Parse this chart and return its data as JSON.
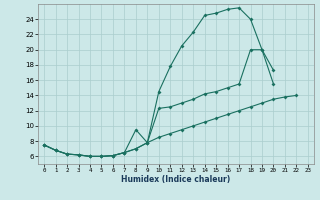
{
  "xlabel": "Humidex (Indice chaleur)",
  "xlim": [
    -0.5,
    23.5
  ],
  "ylim": [
    5.0,
    26.0
  ],
  "yticks": [
    6,
    8,
    10,
    12,
    14,
    16,
    18,
    20,
    22,
    24
  ],
  "xticks": [
    0,
    1,
    2,
    3,
    4,
    5,
    6,
    7,
    8,
    9,
    10,
    11,
    12,
    13,
    14,
    15,
    16,
    17,
    18,
    19,
    20,
    21,
    22,
    23
  ],
  "xtick_labels": [
    "0",
    "1",
    "2",
    "3",
    "4",
    "5",
    "6",
    "7",
    "8",
    "9",
    "10",
    "11",
    "12",
    "13",
    "14",
    "15",
    "16",
    "17",
    "18",
    "19",
    "20",
    "21",
    "22",
    "23"
  ],
  "line_color": "#1a7060",
  "bg_color": "#cce8e8",
  "grid_color": "#aacece",
  "series_top_x": [
    0,
    1,
    2,
    3,
    4,
    5,
    6,
    7,
    8,
    9,
    10,
    11,
    12,
    13,
    14,
    15,
    16,
    17,
    18,
    19,
    20
  ],
  "series_top_y": [
    7.5,
    6.8,
    6.3,
    6.2,
    6.0,
    6.0,
    6.1,
    6.5,
    9.5,
    7.8,
    14.5,
    17.8,
    20.5,
    22.3,
    24.5,
    24.8,
    25.3,
    25.5,
    24.0,
    20.0,
    15.5
  ],
  "series_mid_x": [
    0,
    1,
    2,
    3,
    4,
    5,
    6,
    7,
    8,
    9,
    10,
    11,
    12,
    13,
    14,
    15,
    16,
    17,
    18,
    19,
    20
  ],
  "series_mid_y": [
    7.5,
    6.8,
    6.3,
    6.2,
    6.0,
    6.0,
    6.1,
    6.5,
    7.0,
    7.8,
    12.3,
    12.5,
    13.0,
    13.5,
    14.2,
    14.5,
    15.0,
    15.5,
    20.0,
    20.0,
    17.3
  ],
  "series_bot_x": [
    0,
    1,
    2,
    3,
    4,
    5,
    6,
    7,
    8,
    9,
    10,
    11,
    12,
    13,
    14,
    15,
    16,
    17,
    18,
    19,
    20,
    21,
    22
  ],
  "series_bot_y": [
    7.5,
    6.8,
    6.3,
    6.2,
    6.0,
    6.0,
    6.1,
    6.5,
    7.0,
    7.8,
    8.5,
    9.0,
    9.5,
    10.0,
    10.5,
    11.0,
    11.5,
    12.0,
    12.5,
    13.0,
    13.5,
    13.8,
    14.0
  ]
}
